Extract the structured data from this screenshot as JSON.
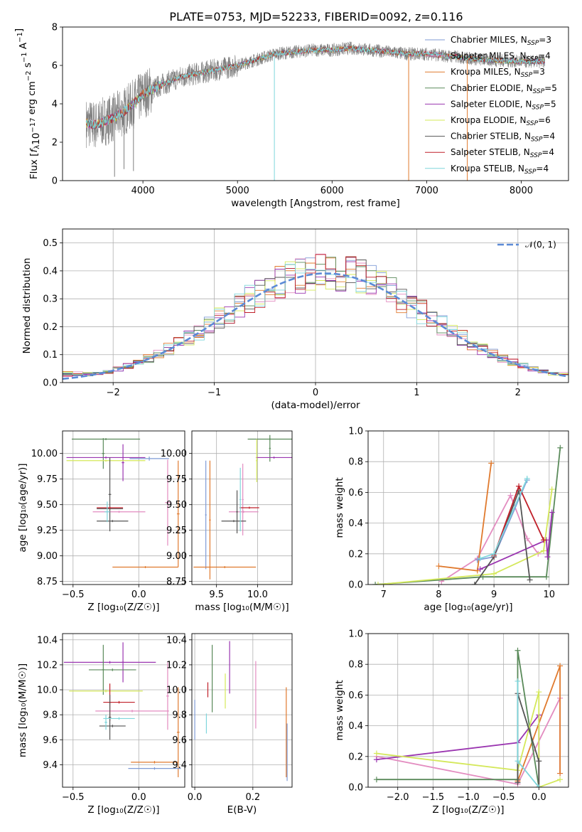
{
  "title": "PLATE=0753, MJD=52233, FIBERID=0092, z=0.116",
  "colors": {
    "chabrier_miles": "#7f9bd6",
    "salpeter_miles": "#e38cc0",
    "kroupa_miles": "#e07a2e",
    "chabrier_elodie": "#5a8a5a",
    "salpeter_elodie": "#9a35b0",
    "kroupa_elodie": "#d4e85a",
    "chabrier_stelib": "#555555",
    "salpeter_stelib": "#c0202a",
    "kroupa_stelib": "#7fd6dc",
    "data": "#808080",
    "normal": "#5b8ad6"
  },
  "chart_data": [
    {
      "id": "spectrum",
      "type": "line",
      "xlabel": "wavelength [Angstrom, rest frame]",
      "ylabel_parts": [
        "Flux [",
        "f",
        "λ",
        "10",
        "−17",
        " erg cm",
        "−2",
        " s",
        "−1",
        " A",
        "−1",
        "]"
      ],
      "xlim": [
        3150,
        8500
      ],
      "ylim": [
        0,
        8
      ],
      "xticks": [
        4000,
        5000,
        6000,
        7000,
        8000
      ],
      "yticks": [
        0,
        2,
        4,
        6,
        8
      ],
      "grid": false,
      "legend_position": "top-right",
      "legend": [
        {
          "label": "Chabrier MILES, N",
          "sub": "SSP",
          "eq": "=3",
          "color_key": "chabrier_miles"
        },
        {
          "label": "Salpeter MILES, N",
          "sub": "SSP",
          "eq": "=4",
          "color_key": "salpeter_miles"
        },
        {
          "label": "Kroupa MILES, N",
          "sub": "SSP",
          "eq": "=3",
          "color_key": "kroupa_miles"
        },
        {
          "label": "Chabrier ELODIE, N",
          "sub": "SSP",
          "eq": "=5",
          "color_key": "chabrier_elodie"
        },
        {
          "label": "Salpeter ELODIE, N",
          "sub": "SSP",
          "eq": "=5",
          "color_key": "salpeter_elodie"
        },
        {
          "label": "Kroupa ELODIE, N",
          "sub": "SSP",
          "eq": "=6",
          "color_key": "kroupa_elodie"
        },
        {
          "label": "Chabrier STELIB, N",
          "sub": "SSP",
          "eq": "=4",
          "color_key": "chabrier_stelib"
        },
        {
          "label": "Salpeter STELIB, N",
          "sub": "SSP",
          "eq": "=4",
          "color_key": "salpeter_stelib"
        },
        {
          "label": "Kroupa STELIB, N",
          "sub": "SSP",
          "eq": "=4",
          "color_key": "kroupa_stelib"
        }
      ],
      "continuum": [
        [
          3400,
          3.0
        ],
        [
          3500,
          2.9
        ],
        [
          3600,
          3.1
        ],
        [
          3700,
          3.3
        ],
        [
          3800,
          3.6
        ],
        [
          3900,
          4.0
        ],
        [
          4000,
          4.5
        ],
        [
          4200,
          5.0
        ],
        [
          4400,
          5.4
        ],
        [
          4600,
          5.6
        ],
        [
          4800,
          5.8
        ],
        [
          5000,
          6.0
        ],
        [
          5200,
          6.3
        ],
        [
          5400,
          6.6
        ],
        [
          5600,
          6.7
        ],
        [
          5800,
          6.8
        ],
        [
          6000,
          6.8
        ],
        [
          6200,
          6.9
        ],
        [
          6400,
          6.8
        ],
        [
          6600,
          6.7
        ],
        [
          6800,
          6.6
        ],
        [
          7000,
          6.6
        ],
        [
          7200,
          6.5
        ],
        [
          7600,
          6.3
        ],
        [
          8000,
          6.2
        ],
        [
          8250,
          6.2
        ]
      ],
      "dips": [
        [
          3700,
          0.2
        ],
        [
          3800,
          0.6
        ],
        [
          3900,
          0.5
        ],
        [
          5390,
          0.0
        ],
        [
          6810,
          0.0
        ],
        [
          7430,
          0.0
        ]
      ]
    },
    {
      "id": "residuals",
      "type": "histogram",
      "xlabel": "(data-model)/error",
      "ylabel": "Normed distribution",
      "xlim": [
        -2.5,
        2.5
      ],
      "ylim": [
        0,
        0.55
      ],
      "xticks": [
        -2,
        -1,
        0,
        1,
        2
      ],
      "yticks": [
        0.0,
        0.1,
        0.2,
        0.3,
        0.4,
        0.5
      ],
      "grid": true,
      "legend_position": "top-right",
      "normal_label": "𝒩(0, 1)",
      "bin_width": 0.1
    },
    {
      "id": "age_vs_Z",
      "type": "scatter",
      "xlabel": "Z [log₁₀(Z/Z☉)]",
      "ylabel": "age  [log₁₀(age/yr)]",
      "xlim": [
        -0.58,
        0.35
      ],
      "ylim": [
        8.72,
        10.22
      ],
      "xticks": [
        -0.5,
        0.0
      ],
      "yticks": [
        8.75,
        9.0,
        9.25,
        9.5,
        9.75,
        10.0
      ],
      "grid": true,
      "crosses": [
        {
          "color_key": "chabrier_miles",
          "x": 0.08,
          "xerr": 0.15,
          "y": 9.95,
          "yerr": 0.02
        },
        {
          "color_key": "salpeter_miles",
          "x": 0.22,
          "xerr": 0.02,
          "y": 9.52,
          "yerr": 0.42
        },
        {
          "color_key": "salpeter_miles",
          "x": -0.15,
          "xerr": 0.2,
          "y": 9.43,
          "yerr": 0.01
        },
        {
          "color_key": "kroupa_miles",
          "x": 0.3,
          "xerr": 0.01,
          "y": 9.41,
          "yerr": 0.52
        },
        {
          "color_key": "kroupa_miles",
          "x": 0.05,
          "xerr": 0.25,
          "y": 8.89,
          "yerr": 0.01
        },
        {
          "color_key": "chabrier_elodie",
          "x": -0.25,
          "xerr": 0.26,
          "y": 10.14,
          "yerr": 0.01
        },
        {
          "color_key": "chabrier_elodie",
          "x": -0.27,
          "xerr": 0.01,
          "y": 10.0,
          "yerr": 0.15
        },
        {
          "color_key": "salpeter_elodie",
          "x": -0.25,
          "xerr": 0.3,
          "y": 9.96,
          "yerr": 0.01
        },
        {
          "color_key": "salpeter_elodie",
          "x": -0.12,
          "xerr": 0.01,
          "y": 9.91,
          "yerr": 0.18
        },
        {
          "color_key": "kroupa_elodie",
          "x": -0.25,
          "xerr": 0.3,
          "y": 9.93,
          "yerr": 0.01
        },
        {
          "color_key": "chabrier_stelib",
          "x": -0.22,
          "xerr": 0.1,
          "y": 9.46,
          "yerr": 0.01
        },
        {
          "color_key": "chabrier_stelib",
          "x": -0.22,
          "xerr": 0.01,
          "y": 9.6,
          "yerr": 0.36
        },
        {
          "color_key": "chabrier_stelib",
          "x": -0.2,
          "xerr": 0.12,
          "y": 9.34,
          "yerr": 0.01
        },
        {
          "color_key": "salpeter_stelib",
          "x": -0.22,
          "xerr": 0.1,
          "y": 9.47,
          "yerr": 0.01
        },
        {
          "color_key": "kroupa_stelib",
          "x": -0.24,
          "xerr": 0.02,
          "y": 9.43,
          "yerr": 0.1
        }
      ]
    },
    {
      "id": "age_vs_mass",
      "type": "scatter",
      "xlabel": "mass [log₁₀(M/M☉)]",
      "ylabel": "",
      "xlim": [
        9.2,
        10.42
      ],
      "ylim": [
        8.72,
        10.22
      ],
      "xticks": [
        9.5,
        10.0
      ],
      "yticks": [
        8.75,
        9.0,
        9.25,
        9.5,
        9.75,
        10.0
      ],
      "grid": true,
      "crosses": [
        {
          "color_key": "chabrier_miles",
          "x": 9.37,
          "xerr": 0.01,
          "y": 9.4,
          "yerr": 0.53
        },
        {
          "color_key": "kroupa_miles",
          "x": 9.42,
          "xerr": 0.01,
          "y": 9.35,
          "yerr": 0.58
        },
        {
          "color_key": "kroupa_miles",
          "x": 9.6,
          "xerr": 0.38,
          "y": 8.89,
          "yerr": 0.01
        },
        {
          "color_key": "salpeter_miles",
          "x": 9.83,
          "xerr": 0.18,
          "y": 9.43,
          "yerr": 0.01
        },
        {
          "color_key": "salpeter_miles",
          "x": 9.82,
          "xerr": 0.01,
          "y": 9.55,
          "yerr": 0.35
        },
        {
          "color_key": "chabrier_elodie",
          "x": 10.15,
          "xerr": 0.27,
          "y": 10.14,
          "yerr": 0.01
        },
        {
          "color_key": "chabrier_elodie",
          "x": 10.15,
          "xerr": 0.01,
          "y": 10.05,
          "yerr": 0.13
        },
        {
          "color_key": "salpeter_elodie",
          "x": 10.2,
          "xerr": 0.22,
          "y": 9.96,
          "yerr": 0.01
        },
        {
          "color_key": "kroupa_elodie",
          "x": 9.99,
          "xerr": 0.01,
          "y": 9.93,
          "yerr": 0.21
        },
        {
          "color_key": "chabrier_stelib",
          "x": 9.71,
          "xerr": 0.15,
          "y": 9.34,
          "yerr": 0.01
        },
        {
          "color_key": "chabrier_stelib",
          "x": 9.75,
          "xerr": 0.01,
          "y": 9.43,
          "yerr": 0.21
        },
        {
          "color_key": "salpeter_stelib",
          "x": 9.9,
          "xerr": 0.12,
          "y": 9.47,
          "yerr": 0.01
        },
        {
          "color_key": "kroupa_stelib",
          "x": 9.79,
          "xerr": 0.01,
          "y": 9.55,
          "yerr": 0.31
        }
      ]
    },
    {
      "id": "mass_weight_vs_age",
      "type": "line",
      "xlabel": "age  [log₁₀(age/yr)]",
      "ylabel": "mass weight",
      "xlim": [
        6.72,
        10.35
      ],
      "ylim": [
        0,
        1
      ],
      "xticks": [
        7,
        8,
        9,
        10
      ],
      "yticks": [
        0.0,
        0.2,
        0.4,
        0.6,
        0.8,
        1.0
      ],
      "grid": true,
      "series": [
        {
          "color_key": "salpeter_miles",
          "x": [
            8.05,
            8.7,
            9.3,
            9.6,
            9.8
          ],
          "y": [
            0.02,
            0.17,
            0.58,
            0.3,
            0.2
          ]
        },
        {
          "color_key": "kroupa_miles",
          "x": [
            8.0,
            8.7,
            8.95
          ],
          "y": [
            0.12,
            0.09,
            0.79
          ]
        },
        {
          "color_key": "chabrier_miles",
          "x": [
            8.7,
            9.0,
            9.6
          ],
          "y": [
            0.16,
            0.18,
            0.68
          ]
        },
        {
          "color_key": "chabrier_elodie",
          "x": [
            6.85,
            8.8,
            9.95,
            10.2
          ],
          "y": [
            0.0,
            0.05,
            0.05,
            0.89
          ]
        },
        {
          "color_key": "salpeter_elodie",
          "x": [
            8.75,
            9.95,
            9.97,
            10.05
          ],
          "y": [
            0.1,
            0.29,
            0.18,
            0.47
          ]
        },
        {
          "color_key": "kroupa_elodie",
          "x": [
            6.9,
            9.0,
            9.9,
            10.05
          ],
          "y": [
            0.0,
            0.07,
            0.22,
            0.62
          ]
        },
        {
          "color_key": "chabrier_stelib",
          "x": [
            8.65,
            9.0,
            9.45,
            9.65
          ],
          "y": [
            0.0,
            0.18,
            0.61,
            0.03
          ]
        },
        {
          "color_key": "salpeter_stelib",
          "x": [
            9.0,
            9.45,
            9.9
          ],
          "y": [
            0.19,
            0.64,
            0.29
          ]
        },
        {
          "color_key": "kroupa_stelib",
          "x": [
            8.75,
            9.0,
            9.6
          ],
          "y": [
            0.17,
            0.2,
            0.69
          ]
        }
      ]
    },
    {
      "id": "mass_vs_Z",
      "type": "scatter",
      "xlabel": "Z [log₁₀(Z/Z☉)]",
      "ylabel": "mass [log₁₀(M/M☉)]",
      "xlim": [
        -0.58,
        0.35
      ],
      "ylim": [
        9.22,
        10.45
      ],
      "xticks": [
        -0.5,
        0.0
      ],
      "yticks": [
        9.4,
        9.6,
        9.8,
        10.0,
        10.2,
        10.4
      ],
      "grid": true,
      "crosses": [
        {
          "color_key": "salpeter_elodie",
          "x": -0.22,
          "xerr": 0.35,
          "y": 10.22,
          "yerr": 0.01
        },
        {
          "color_key": "salpeter_elodie",
          "x": -0.12,
          "xerr": 0.01,
          "y": 10.22,
          "yerr": 0.16
        },
        {
          "color_key": "chabrier_elodie",
          "x": -0.2,
          "xerr": 0.18,
          "y": 10.16,
          "yerr": 0.01
        },
        {
          "color_key": "chabrier_elodie",
          "x": -0.27,
          "xerr": 0.01,
          "y": 10.16,
          "yerr": 0.2
        },
        {
          "color_key": "kroupa_elodie",
          "x": -0.25,
          "xerr": 0.28,
          "y": 9.99,
          "yerr": 0.01
        },
        {
          "color_key": "salpeter_miles",
          "x": -0.05,
          "xerr": 0.28,
          "y": 9.83,
          "yerr": 0.01
        },
        {
          "color_key": "salpeter_miles",
          "x": 0.22,
          "xerr": 0.01,
          "y": 9.95,
          "yerr": 0.27
        },
        {
          "color_key": "kroupa_miles",
          "x": 0.3,
          "xerr": 0.01,
          "y": 9.66,
          "yerr": 0.36
        },
        {
          "color_key": "kroupa_miles",
          "x": 0.12,
          "xerr": 0.18,
          "y": 9.42,
          "yerr": 0.01
        },
        {
          "color_key": "chabrier_miles",
          "x": 0.12,
          "xerr": 0.2,
          "y": 9.37,
          "yerr": 0.01
        },
        {
          "color_key": "salpeter_stelib",
          "x": -0.15,
          "xerr": 0.12,
          "y": 9.9,
          "yerr": 0.01
        },
        {
          "color_key": "salpeter_stelib",
          "x": -0.22,
          "xerr": 0.01,
          "y": 9.9,
          "yerr": 0.15
        },
        {
          "color_key": "chabrier_stelib",
          "x": -0.22,
          "xerr": 0.01,
          "y": 9.78,
          "yerr": 0.18
        },
        {
          "color_key": "chabrier_stelib",
          "x": -0.2,
          "xerr": 0.1,
          "y": 9.71,
          "yerr": 0.01
        },
        {
          "color_key": "kroupa_stelib",
          "x": -0.15,
          "xerr": 0.12,
          "y": 9.77,
          "yerr": 0.01
        },
        {
          "color_key": "kroupa_stelib",
          "x": -0.25,
          "xerr": 0.01,
          "y": 9.74,
          "yerr": 0.06
        }
      ]
    },
    {
      "id": "mass_vs_ebv",
      "type": "scatter",
      "xlabel": "E(B-V)",
      "ylabel": "",
      "xlim": [
        -0.01,
        0.335
      ],
      "ylim": [
        9.22,
        10.45
      ],
      "xticks": [
        0.0,
        0.2
      ],
      "yticks": [
        9.4,
        9.6,
        9.8,
        10.0,
        10.2,
        10.4
      ],
      "grid": true,
      "crosses": [
        {
          "color_key": "chabrier_miles",
          "x": 0.0,
          "xerr": 0.0,
          "y": 9.76,
          "yerr": 0.16
        },
        {
          "color_key": "kroupa_stelib",
          "x": 0.04,
          "xerr": 0.0,
          "y": 9.73,
          "yerr": 0.08
        },
        {
          "color_key": "salpeter_stelib",
          "x": 0.045,
          "xerr": 0.0,
          "y": 10.0,
          "yerr": 0.06
        },
        {
          "color_key": "chabrier_elodie",
          "x": 0.06,
          "xerr": 0.0,
          "y": 10.09,
          "yerr": 0.27
        },
        {
          "color_key": "kroupa_elodie",
          "x": 0.105,
          "xerr": 0.0,
          "y": 9.99,
          "yerr": 0.14
        },
        {
          "color_key": "salpeter_elodie",
          "x": 0.12,
          "xerr": 0.0,
          "y": 10.18,
          "yerr": 0.21
        },
        {
          "color_key": "salpeter_miles",
          "x": 0.21,
          "xerr": 0.0,
          "y": 9.96,
          "yerr": 0.27
        },
        {
          "color_key": "kroupa_miles",
          "x": 0.315,
          "xerr": 0.0,
          "y": 9.66,
          "yerr": 0.36
        },
        {
          "color_key": "chabrier_miles",
          "x": 0.318,
          "xerr": 0.0,
          "y": 9.5,
          "yerr": 0.23
        }
      ]
    },
    {
      "id": "mass_weight_vs_Z",
      "type": "line",
      "xlabel": "Z [log₁₀(Z/Z☉)]",
      "ylabel": "mass weight",
      "xlim": [
        -2.42,
        0.42
      ],
      "ylim": [
        0,
        1
      ],
      "xticks": [
        -2.0,
        -1.5,
        -1.0,
        -0.5,
        0.0
      ],
      "yticks": [
        0.0,
        0.2,
        0.4,
        0.6,
        0.8,
        1.0
      ],
      "grid": true,
      "series": [
        {
          "color_key": "salpeter_miles",
          "x": [
            -2.3,
            -0.3,
            0.3,
            0.3
          ],
          "y": [
            0.2,
            0.02,
            0.58,
            0.09
          ]
        },
        {
          "color_key": "kroupa_miles",
          "x": [
            -0.3,
            0.3,
            0.3
          ],
          "y": [
            0.04,
            0.79,
            0.09
          ]
        },
        {
          "color_key": "chabrier_elodie",
          "x": [
            -2.3,
            -0.3,
            -0.3,
            0.0
          ],
          "y": [
            0.05,
            0.05,
            0.89,
            0.0
          ]
        },
        {
          "color_key": "salpeter_elodie",
          "x": [
            -2.3,
            -0.3,
            0.0,
            0.0
          ],
          "y": [
            0.18,
            0.29,
            0.47,
            0.0
          ]
        },
        {
          "color_key": "kroupa_elodie",
          "x": [
            -2.3,
            -0.3,
            0.0,
            0.0,
            0.3
          ],
          "y": [
            0.22,
            0.11,
            0.62,
            0.0,
            0.05
          ]
        },
        {
          "color_key": "chabrier_stelib",
          "x": [
            -0.3,
            -0.3,
            0.0,
            0.0
          ],
          "y": [
            0.03,
            0.61,
            0.17,
            0.0
          ]
        },
        {
          "color_key": "kroupa_stelib",
          "x": [
            -0.3,
            -0.3,
            0.0
          ],
          "y": [
            0.69,
            0.17,
            0.0
          ]
        }
      ]
    }
  ]
}
